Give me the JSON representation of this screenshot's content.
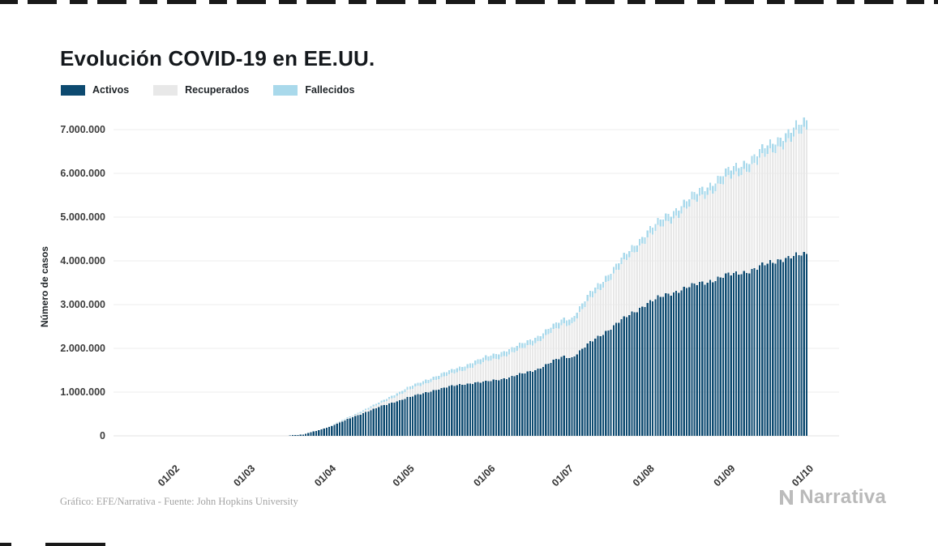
{
  "page": {
    "title": "Evolución COVID-19 en EE.UU.",
    "footer_credit": "Gráfico: EFE/Narrativa - Fuente: John Hopkins University",
    "brand": "Narrativa"
  },
  "legend": [
    {
      "label": "Activos",
      "color": "#0d4a70"
    },
    {
      "label": "Recuperados",
      "color": "#e8e8e8"
    },
    {
      "label": "Fallecidos",
      "color": "#a9d9eb"
    }
  ],
  "chart_data": {
    "type": "bar",
    "stacked": true,
    "title": "Evolución COVID-19 en EE.UU.",
    "xlabel": "",
    "ylabel": "Número de casos",
    "ylim": [
      0,
      7000000
    ],
    "grid": "horizontal",
    "legend_position": "top-left",
    "yticks": [
      0,
      1000000,
      2000000,
      3000000,
      4000000,
      5000000,
      6000000,
      7000000
    ],
    "ytick_labels": [
      "0",
      "1.000.000",
      "2.000.000",
      "3.000.000",
      "4.000.000",
      "5.000.000",
      "6.000.000",
      "7.000.000"
    ],
    "xticks": [
      {
        "label": "01/02",
        "day": 0
      },
      {
        "label": "01/03",
        "day": 29
      },
      {
        "label": "01/04",
        "day": 60
      },
      {
        "label": "01/05",
        "day": 90
      },
      {
        "label": "01/06",
        "day": 121
      },
      {
        "label": "01/07",
        "day": 151
      },
      {
        "label": "01/08",
        "day": 182
      },
      {
        "label": "01/09",
        "day": 213
      },
      {
        "label": "01/10",
        "day": 243
      }
    ],
    "series_names": [
      "Activos",
      "Recuperados",
      "Fallecidos"
    ],
    "points": [
      {
        "day": 0,
        "activos": 0,
        "recuperados": 0,
        "fallecidos": 0
      },
      {
        "day": 30,
        "activos": 150,
        "recuperados": 10,
        "fallecidos": 1
      },
      {
        "day": 43,
        "activos": 3200,
        "recuperados": 60,
        "fallecidos": 60
      },
      {
        "day": 50,
        "activos": 31000,
        "recuperados": 250,
        "fallecidos": 420
      },
      {
        "day": 60,
        "activos": 202000,
        "recuperados": 8500,
        "fallecidos": 5100
      },
      {
        "day": 70,
        "activos": 452000,
        "recuperados": 29000,
        "fallecidos": 19000
      },
      {
        "day": 80,
        "activos": 676000,
        "recuperados": 72000,
        "fallecidos": 42000
      },
      {
        "day": 90,
        "activos": 871000,
        "recuperados": 164000,
        "fallecidos": 65000
      },
      {
        "day": 100,
        "activos": 1040000,
        "recuperados": 230000,
        "fallecidos": 80000
      },
      {
        "day": 110,
        "activos": 1176000,
        "recuperados": 300000,
        "fallecidos": 94000
      },
      {
        "day": 120,
        "activos": 1235000,
        "recuperados": 460000,
        "fallecidos": 105000
      },
      {
        "day": 130,
        "activos": 1347000,
        "recuperados": 540000,
        "fallecidos": 113000
      },
      {
        "day": 140,
        "activos": 1530000,
        "recuperados": 630000,
        "fallecidos": 120000
      },
      {
        "day": 150,
        "activos": 1822000,
        "recuperados": 730000,
        "fallecidos": 128000
      },
      {
        "day": 153,
        "activos": 1790000,
        "recuperados": 775000,
        "fallecidos": 130000
      },
      {
        "day": 160,
        "activos": 2130000,
        "recuperados": 990000,
        "fallecidos": 135000
      },
      {
        "day": 170,
        "activos": 2560000,
        "recuperados": 1200000,
        "fallecidos": 141000
      },
      {
        "day": 182,
        "activos": 3040000,
        "recuperados": 1500000,
        "fallecidos": 155000
      },
      {
        "day": 192,
        "activos": 3290000,
        "recuperados": 1700000,
        "fallecidos": 164000
      },
      {
        "day": 202,
        "activos": 3480000,
        "recuperados": 1950000,
        "fallecidos": 174000
      },
      {
        "day": 213,
        "activos": 3670000,
        "recuperados": 2200000,
        "fallecidos": 184000
      },
      {
        "day": 223,
        "activos": 3810000,
        "recuperados": 2400000,
        "fallecidos": 192000
      },
      {
        "day": 233,
        "activos": 4050000,
        "recuperados": 2600000,
        "fallecidos": 200000
      },
      {
        "day": 243,
        "activos": 4150000,
        "recuperados": 2840000,
        "fallecidos": 207000
      }
    ]
  }
}
